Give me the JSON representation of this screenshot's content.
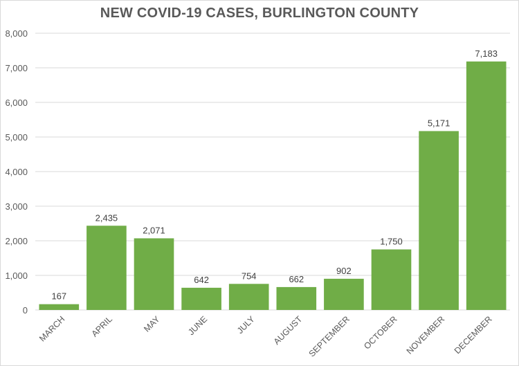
{
  "chart_data": {
    "type": "bar",
    "title": "NEW COVID-19 CASES, BURLINGTON COUNTY",
    "xlabel": "",
    "ylabel": "",
    "categories": [
      "MARCH",
      "APRIL",
      "MAY",
      "JUNE",
      "JULY",
      "AUGUST",
      "SEPTEMBER",
      "OCTOBER",
      "NOVEMBER",
      "DECEMBER"
    ],
    "values": [
      167,
      2435,
      2071,
      642,
      754,
      662,
      902,
      1750,
      5171,
      7183
    ],
    "value_labels": [
      "167",
      "2,435",
      "2,071",
      "642",
      "754",
      "662",
      "902",
      "1,750",
      "5,171",
      "7,183"
    ],
    "ylim": [
      0,
      8000
    ],
    "yticks": [
      0,
      1000,
      2000,
      3000,
      4000,
      5000,
      6000,
      7000,
      8000
    ],
    "ytick_labels": [
      "0",
      "1,000",
      "2,000",
      "3,000",
      "4,000",
      "5,000",
      "6,000",
      "7,000",
      "8,000"
    ],
    "grid": true,
    "legend": "none",
    "colors": {
      "bar": "#70ad47",
      "grid": "#d9d9d9",
      "text": "#595959"
    }
  }
}
